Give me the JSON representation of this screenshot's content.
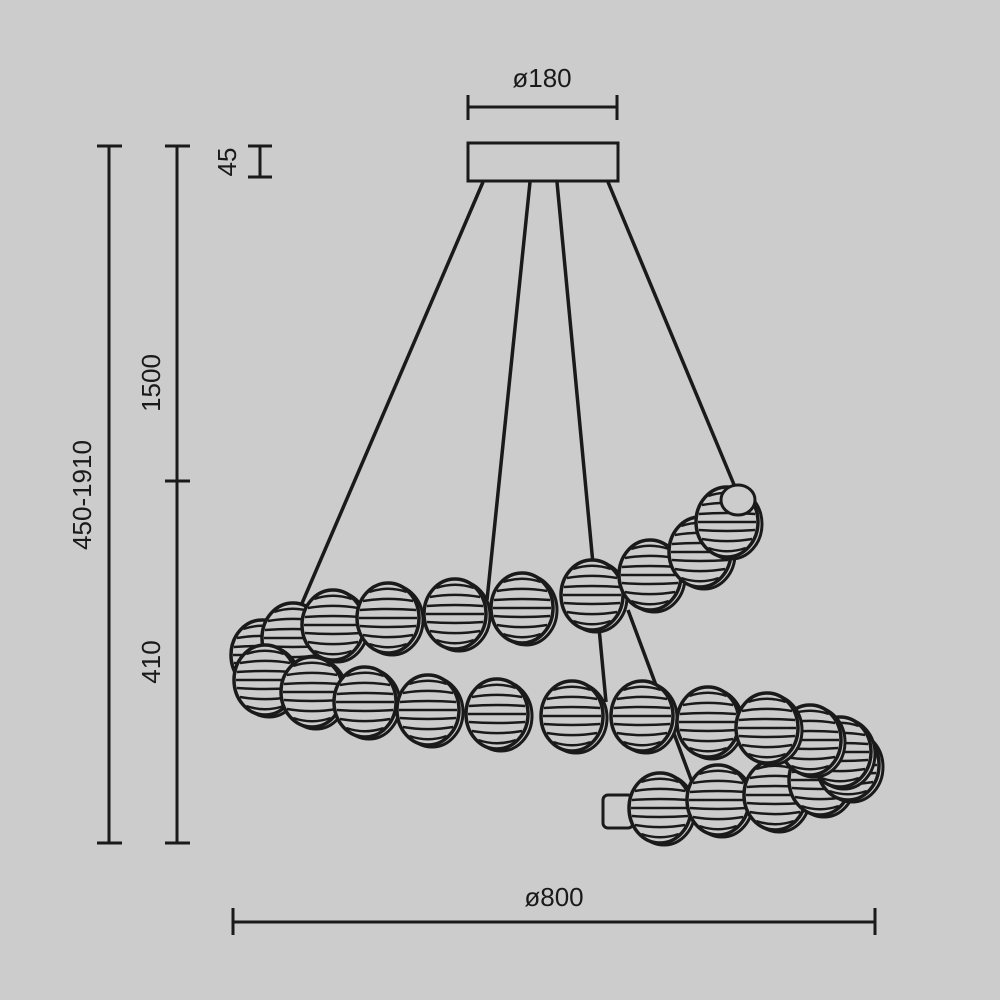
{
  "dimensions": {
    "canopy_diameter": "ø180",
    "canopy_height": "45",
    "total_height": "450-1910",
    "cable_length": "1500",
    "body_height": "410",
    "body_diameter": "ø800"
  },
  "colors": {
    "background": "#cccccc",
    "line": "#1a1a1a"
  }
}
